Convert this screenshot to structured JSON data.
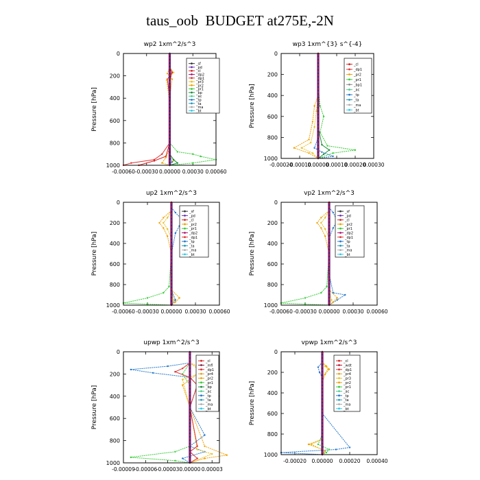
{
  "page": {
    "title": "taus_oob  BUDGET at275E,-2N"
  },
  "colors": {
    "sf": "#333333",
    "pd": "#6b2fb0",
    "cl": "#d62020",
    "dp2": "#b01070",
    "dp1": "#e03030",
    "pr3": "#e8c020",
    "pr2": "#f0a000",
    "pr1": "#33cc33",
    "bp": "#1a8a3a",
    "ac": "#44cc88",
    "tp": "#2277cc",
    "ta": "#2299bb",
    "ma": "#aaaaaa",
    "bt": "#22ccee",
    "mfl": "#7a1a3a",
    "pr4": "#e0a020",
    "wdt": "#b81030"
  },
  "chart_data": [
    {
      "type": "line",
      "title": "wp2   1xm^2/s^3",
      "ylabel": "Pressure [hPa]",
      "xlim": [
        -0.0006,
        0.0006
      ],
      "ylim": [
        1000,
        0
      ],
      "xticks": [
        "-0.00060",
        "-0.00030",
        "0.00000",
        "0.00030",
        "0.00060"
      ],
      "yticks": [
        "0",
        "200",
        "400",
        "600",
        "800",
        "1000"
      ],
      "legend": [
        "_sf",
        "_pd",
        "_cl",
        "_dp2",
        "_dp1",
        "_pr3",
        "_pr2",
        "_pr1",
        "_bp",
        "_ac",
        "_tp",
        "_ta",
        "_ma",
        "_bt"
      ],
      "series": [
        {
          "key": "pr1",
          "x": [
            0,
            0,
            0,
            0,
            0,
            0.0001,
            0.0003,
            0.0004,
            0.0006,
            0.0003,
            0
          ],
          "y": [
            0,
            200,
            400,
            600,
            800,
            880,
            900,
            920,
            950,
            980,
            1000
          ]
        },
        {
          "key": "dp1",
          "x": [
            0,
            3e-05,
            -3e-05,
            0,
            0,
            0,
            -0.0001,
            -0.0002,
            -0.0005,
            -0.0006
          ],
          "y": [
            120,
            170,
            230,
            400,
            600,
            800,
            900,
            950,
            980,
            1000
          ]
        },
        {
          "key": "cl",
          "x": [
            0,
            3e-05,
            0,
            0,
            0,
            -5e-05,
            -0.0002,
            -0.0004
          ],
          "y": [
            120,
            170,
            250,
            500,
            800,
            920,
            960,
            1000
          ]
        },
        {
          "key": "pr2",
          "x": [
            0,
            -3e-05,
            3e-05,
            0,
            0,
            0,
            -5e-05,
            -0.0001,
            0
          ],
          "y": [
            120,
            180,
            230,
            400,
            600,
            850,
            930,
            980,
            1000
          ]
        },
        {
          "key": "pr3",
          "x": [
            0,
            5e-05,
            -4e-05,
            0,
            0,
            0,
            5e-05,
            0
          ],
          "y": [
            120,
            170,
            240,
            450,
            700,
            900,
            960,
            1000
          ]
        },
        {
          "key": "bp",
          "x": [
            0,
            0,
            0,
            0,
            0,
            5e-05,
            0.0001,
            0
          ],
          "y": [
            0,
            200,
            500,
            800,
            900,
            950,
            980,
            1000
          ]
        },
        {
          "key": "tp",
          "x": [
            0,
            0,
            0,
            3e-05,
            0
          ],
          "y": [
            0,
            500,
            900,
            970,
            1000
          ]
        },
        {
          "key": "pd",
          "x": [
            0,
            0,
            0,
            0,
            0,
            0,
            0
          ],
          "y": [
            0,
            150,
            300,
            500,
            700,
            900,
            1000
          ]
        }
      ]
    },
    {
      "type": "line",
      "title": "wp3   1xm^{3} s^{-4}",
      "ylabel": "Pressure [hPa]",
      "xlim": [
        -0.0002,
        0.0003
      ],
      "ylim": [
        1000,
        0
      ],
      "xticks": [
        "-0.00020",
        "-0.00010",
        "0.00000",
        "0.00010",
        "0.00020",
        "0.00030"
      ],
      "yticks": [
        "0",
        "200",
        "400",
        "600",
        "800",
        "1000"
      ],
      "legend": [
        "_cl",
        "_dp1",
        "_pr2",
        "_pr1",
        "_bp1",
        "_ac",
        "_tp",
        "_ta",
        "_ma",
        "_bt"
      ],
      "series": [
        {
          "key": "pr1",
          "x": [
            0,
            0,
            1e-05,
            3e-05,
            1e-05,
            5e-05,
            0.0002,
            8e-05,
            0
          ],
          "y": [
            0,
            300,
            500,
            600,
            750,
            880,
            920,
            950,
            1000
          ]
        },
        {
          "key": "pr2",
          "x": [
            0,
            0,
            -2e-05,
            -3e-05,
            -5e-05,
            -0.00013,
            -5e-05,
            0
          ],
          "y": [
            0,
            400,
            500,
            650,
            820,
            900,
            950,
            1000
          ]
        },
        {
          "key": "pr3",
          "x": [
            0,
            0,
            -1e-05,
            -2e-05,
            -4e-05,
            -9e-05,
            -3e-05,
            0
          ],
          "y": [
            0,
            420,
            550,
            700,
            850,
            900,
            950,
            1000
          ]
        },
        {
          "key": "bp",
          "x": [
            0,
            0,
            2e-05,
            6e-05,
            3e-05,
            0
          ],
          "y": [
            0,
            700,
            870,
            920,
            960,
            1000
          ]
        },
        {
          "key": "tp",
          "x": [
            0,
            0,
            -2e-05,
            2e-05,
            8e-05,
            0
          ],
          "y": [
            0,
            800,
            900,
            940,
            980,
            1000
          ]
        },
        {
          "key": "cl",
          "x": [
            0,
            0,
            0,
            0,
            0,
            0,
            0
          ],
          "y": [
            0,
            150,
            300,
            500,
            700,
            900,
            1000
          ]
        }
      ]
    },
    {
      "type": "line",
      "title": "up2   1xm^2/s^3",
      "ylabel": "Pressure [hPa]",
      "xlim": [
        -0.0006,
        0.0006
      ],
      "ylim": [
        1000,
        0
      ],
      "xticks": [
        "-0.00060",
        "-0.00030",
        "0.00000",
        "0.00030",
        "0.00060"
      ],
      "yticks": [
        "0",
        "200",
        "400",
        "600",
        "800",
        "1000"
      ],
      "legend": [
        "_sf",
        "_pd",
        "_cl",
        "_pr2",
        "_pr1",
        "_dp2",
        "_dp1",
        "_tp",
        "_ta",
        "_ma",
        "_bt"
      ],
      "series": [
        {
          "key": "tp",
          "x": [
            0,
            5e-05,
            0.00015,
            0.0001,
            5e-05,
            0,
            0,
            5e-05,
            0
          ],
          "y": [
            50,
            100,
            180,
            230,
            300,
            500,
            850,
            950,
            1000
          ]
        },
        {
          "key": "pr2",
          "x": [
            0,
            -0.0001,
            -0.00015,
            -0.0001,
            -5e-05,
            0,
            0,
            0.0001,
            5e-05,
            0
          ],
          "y": [
            80,
            150,
            200,
            250,
            330,
            500,
            850,
            930,
            970,
            1000
          ]
        },
        {
          "key": "pr1",
          "x": [
            0,
            0,
            -3e-05,
            -0.0001,
            -0.0003,
            -0.0006,
            -0.0003,
            0
          ],
          "y": [
            0,
            500,
            820,
            880,
            930,
            980,
            990,
            1000
          ]
        },
        {
          "key": "pr3",
          "x": [
            0,
            -5e-05,
            -0.0001,
            -5e-05,
            0,
            0,
            3e-05,
            0
          ],
          "y": [
            80,
            150,
            200,
            260,
            350,
            850,
            950,
            1000
          ]
        },
        {
          "key": "cl",
          "x": [
            0,
            0,
            0,
            0,
            0,
            0,
            0
          ],
          "y": [
            0,
            150,
            300,
            500,
            700,
            900,
            1000
          ]
        }
      ]
    },
    {
      "type": "line",
      "title": "vp2   1xm^2/s^3",
      "ylabel": "Pressure [hPa]",
      "xlim": [
        -0.0006,
        0.0006
      ],
      "ylim": [
        1000,
        0
      ],
      "xticks": [
        "-0.00060",
        "-0.00030",
        "0.00000",
        "0.00030",
        "0.00060"
      ],
      "yticks": [
        "0",
        "200",
        "400",
        "600",
        "800",
        "1000"
      ],
      "legend": [
        "_sf",
        "_pd",
        "_cl",
        "_pr2",
        "_pr1",
        "_dp2",
        "_dp1",
        "_tp",
        "_ta",
        "_ma",
        "_bt"
      ],
      "series": [
        {
          "key": "tp",
          "x": [
            0,
            5e-05,
            0.0001,
            5e-05,
            0,
            0,
            5e-05,
            0.0002,
            0.0001,
            0
          ],
          "y": [
            50,
            100,
            180,
            250,
            350,
            700,
            880,
            900,
            950,
            1000
          ]
        },
        {
          "key": "pr2",
          "x": [
            0,
            -0.0001,
            -0.00015,
            -0.0001,
            -5e-05,
            0,
            0,
            0.0001,
            5e-05,
            0
          ],
          "y": [
            80,
            150,
            200,
            250,
            330,
            500,
            850,
            930,
            970,
            1000
          ]
        },
        {
          "key": "pr1",
          "x": [
            0,
            0,
            -3e-05,
            -0.0001,
            -0.0003,
            -0.0006,
            -0.0003,
            0
          ],
          "y": [
            0,
            500,
            820,
            880,
            930,
            980,
            990,
            1000
          ]
        },
        {
          "key": "pr3",
          "x": [
            0,
            -5e-05,
            -0.0001,
            -5e-05,
            0,
            0,
            3e-05,
            0
          ],
          "y": [
            80,
            150,
            200,
            260,
            350,
            850,
            950,
            1000
          ]
        },
        {
          "key": "cl",
          "x": [
            0,
            0,
            0,
            0,
            0,
            0,
            0
          ],
          "y": [
            0,
            150,
            300,
            500,
            700,
            900,
            1000
          ]
        }
      ]
    },
    {
      "type": "line",
      "title": "upwp   1xm^2/s^3",
      "ylabel": "Pressure [hPa]",
      "xlim": [
        -9e-05,
        4e-05
      ],
      "ylim": [
        1000,
        0
      ],
      "xticks": [
        "-0.00009",
        "-0.00006",
        "-0.00003",
        "0.00000",
        "0.00003"
      ],
      "yticks": [
        "0",
        "200",
        "400",
        "600",
        "800",
        "1000"
      ],
      "legend": [
        "_cl",
        "_mfl",
        "_dp1",
        "_pr4",
        "_pr2",
        "_pr1",
        "_bp",
        "_ac",
        "_tp",
        "_ta",
        "_ma",
        "_bt"
      ],
      "series": [
        {
          "key": "tp",
          "x": [
            0,
            -3e-05,
            -8e-05,
            -5e-05,
            0,
            1e-05,
            0,
            2e-05,
            0,
            2e-05,
            -1e-05,
            0
          ],
          "y": [
            100,
            130,
            160,
            190,
            230,
            300,
            500,
            750,
            850,
            900,
            960,
            1000
          ]
        },
        {
          "key": "pr1",
          "x": [
            0,
            -1e-05,
            0,
            0,
            0,
            -2e-05,
            -8e-05,
            -2e-05,
            0
          ],
          "y": [
            100,
            200,
            300,
            600,
            850,
            900,
            950,
            980,
            1000
          ]
        },
        {
          "key": "pr2",
          "x": [
            0,
            1e-05,
            3e-05,
            1e-05,
            0,
            -1e-05,
            0,
            2e-05,
            5e-05,
            2e-05,
            0
          ],
          "y": [
            100,
            130,
            160,
            200,
            250,
            300,
            500,
            850,
            930,
            960,
            1000
          ]
        },
        {
          "key": "pr3",
          "x": [
            0,
            1e-05,
            2e-05,
            -1e-05,
            0,
            1e-05,
            3e-05,
            0
          ],
          "y": [
            100,
            150,
            180,
            250,
            500,
            880,
            920,
            1000
          ]
        },
        {
          "key": "dp1",
          "x": [
            0,
            -1e-05,
            -2e-05,
            0,
            1e-05,
            0,
            1e-05,
            0,
            1e-05,
            0
          ],
          "y": [
            100,
            150,
            180,
            230,
            300,
            500,
            850,
            900,
            960,
            1000
          ]
        },
        {
          "key": "pd",
          "x": [
            0,
            0,
            0,
            0,
            0,
            0,
            0
          ],
          "y": [
            0,
            150,
            300,
            500,
            700,
            900,
            1000
          ]
        }
      ]
    },
    {
      "type": "line",
      "title": "vpwp   1xm^2/s^3",
      "ylabel": "Pressure [hPa]",
      "xlim": [
        -0.0003,
        0.0004
      ],
      "ylim": [
        1000,
        0
      ],
      "xticks": [
        "-0.00020",
        "0.00000",
        "0.00020",
        "0.00040"
      ],
      "yticks": [
        "0",
        "200",
        "400",
        "600",
        "800",
        "1000"
      ],
      "legend": [
        "_cl",
        "_wdt",
        "_dp1",
        "_pr4",
        "_pr3",
        "_pr2",
        "_pr1",
        "_ac",
        "_tp",
        "_ta",
        "_ma",
        "_bt"
      ],
      "series": [
        {
          "key": "tp",
          "x": [
            0,
            -3e-05,
            -2e-05,
            0,
            0,
            0.0002,
            0.0001,
            -0.0003,
            0
          ],
          "y": [
            100,
            150,
            200,
            250,
            600,
            930,
            950,
            980,
            1000
          ]
        },
        {
          "key": "pr2",
          "x": [
            0,
            3e-05,
            5e-05,
            2e-05,
            0,
            0,
            -0.0001,
            0,
            2e-05,
            0
          ],
          "y": [
            100,
            140,
            170,
            220,
            300,
            850,
            900,
            950,
            970,
            1000
          ]
        },
        {
          "key": "pr3",
          "x": [
            0,
            2e-05,
            4e-05,
            0,
            0,
            -8e-05,
            0,
            1e-05,
            0
          ],
          "y": [
            100,
            140,
            170,
            250,
            850,
            900,
            950,
            980,
            1000
          ]
        },
        {
          "key": "pr1",
          "x": [
            0,
            0,
            0,
            -3e-05,
            5e-05,
            3e-05,
            0
          ],
          "y": [
            0,
            300,
            800,
            900,
            950,
            980,
            1000
          ]
        },
        {
          "key": "wdt",
          "x": [
            0,
            0,
            0,
            0,
            0,
            0,
            0
          ],
          "y": [
            0,
            150,
            300,
            500,
            700,
            900,
            1000
          ]
        }
      ]
    }
  ]
}
